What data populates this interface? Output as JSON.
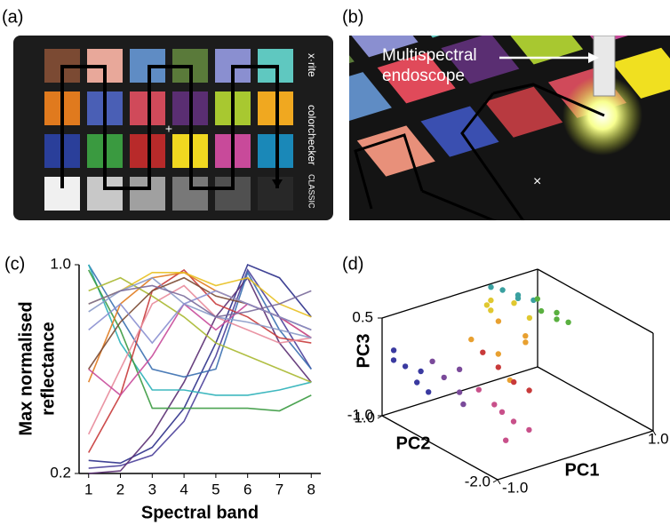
{
  "panel_labels": [
    "(a)",
    "(b)",
    "(c)",
    "(d)"
  ],
  "checker": {
    "brand": "x·rite",
    "product": "colorchecker",
    "edition": "CLASSIC"
  },
  "endoscope_annotation": [
    "Multispectral",
    "endoscope"
  ],
  "chart_data": [
    {
      "type": "line",
      "xlabel": "Spectral band",
      "ylabel": [
        "Max normalised",
        "reflectance"
      ],
      "x": [
        1,
        2,
        3,
        4,
        5,
        6,
        7,
        8
      ],
      "xlim": [
        0.7,
        8.3
      ],
      "xticks": [
        1,
        2,
        3,
        4,
        5,
        6,
        7,
        8
      ],
      "ylim": [
        0.2,
        1.0
      ],
      "yticks": [
        {
          "value": 1.0,
          "label": "1.0"
        },
        {
          "value": 0.2,
          "label": "0.2"
        }
      ],
      "series": [
        {
          "color": "#2b2f8a",
          "values": [
            0.25,
            0.24,
            0.3,
            0.45,
            0.7,
            1.0,
            0.95,
            0.8
          ]
        },
        {
          "color": "#4a3f9a",
          "values": [
            0.22,
            0.23,
            0.27,
            0.4,
            0.65,
            0.98,
            0.8,
            0.6
          ]
        },
        {
          "color": "#5a2e72",
          "values": [
            0.2,
            0.21,
            0.35,
            0.55,
            0.8,
            0.95,
            0.7,
            0.55
          ]
        },
        {
          "color": "#3a6fb0",
          "values": [
            1.0,
            0.8,
            0.6,
            0.57,
            0.6,
            0.97,
            0.75,
            0.6
          ]
        },
        {
          "color": "#2ab0b8",
          "values": [
            1.0,
            0.7,
            0.52,
            0.52,
            0.5,
            0.5,
            0.52,
            0.55
          ]
        },
        {
          "color": "#3a9a40",
          "values": [
            0.98,
            0.75,
            0.45,
            0.45,
            0.45,
            0.45,
            0.44,
            0.5
          ]
        },
        {
          "color": "#c83a3a",
          "values": [
            0.28,
            0.5,
            0.9,
            0.98,
            0.85,
            0.8,
            0.72,
            0.7
          ]
        },
        {
          "color": "#e07a1e",
          "values": [
            0.55,
            0.85,
            0.95,
            0.97,
            0.9,
            0.85,
            0.8,
            0.72
          ]
        },
        {
          "color": "#e8c020",
          "values": [
            0.85,
            0.9,
            0.97,
            0.97,
            0.92,
            0.95,
            0.85,
            0.8
          ]
        },
        {
          "color": "#e88a9a",
          "values": [
            0.35,
            0.6,
            0.85,
            0.92,
            0.8,
            0.75,
            0.7,
            0.72
          ]
        },
        {
          "color": "#c84a9a",
          "values": [
            0.6,
            0.5,
            0.65,
            0.85,
            0.75,
            0.85,
            0.8,
            0.72
          ]
        },
        {
          "color": "#a8b830",
          "values": [
            0.9,
            0.95,
            0.88,
            0.8,
            0.7,
            0.65,
            0.6,
            0.55
          ]
        },
        {
          "color": "#8a9ac8",
          "values": [
            0.82,
            0.9,
            0.95,
            0.85,
            0.8,
            0.78,
            0.75,
            0.72
          ]
        },
        {
          "color": "#7b4a33",
          "values": [
            0.6,
            0.78,
            0.9,
            0.95,
            0.88,
            0.85,
            0.8,
            0.75
          ]
        },
        {
          "color": "#8a8fd0",
          "values": [
            0.75,
            0.85,
            0.7,
            0.85,
            0.9,
            0.85,
            0.8,
            0.75
          ]
        },
        {
          "color": "#7a6a9a",
          "values": [
            0.85,
            0.9,
            0.92,
            0.88,
            0.8,
            0.82,
            0.85,
            0.9
          ]
        }
      ]
    },
    {
      "type": "scatter3d",
      "xlabel": "PC1",
      "ylabel": "PC2",
      "zlabel": "PC3",
      "xlim": [
        -1.0,
        1.0
      ],
      "xticks": [
        {
          "value": -1.0,
          "label": "-1.0"
        },
        {
          "value": 1.0,
          "label": "1.0"
        }
      ],
      "ylim": [
        -2.0,
        1.0
      ],
      "yticks": [
        {
          "value": 1.0,
          "label": "1.0"
        },
        {
          "value": -2.0,
          "label": "-2.0"
        }
      ],
      "zlim": [
        -1.0,
        0.5
      ],
      "zticks": [
        {
          "value": 0.5,
          "label": "0.5"
        },
        {
          "value": -1.0,
          "label": "-1.0"
        }
      ],
      "series": [
        {
          "color": "#3a3aa0",
          "x": [
            -0.9,
            -0.85,
            -0.8,
            -0.95,
            -0.75,
            -0.7
          ],
          "y": [
            0.9,
            0.7,
            0.5,
            0.8,
            0.3,
            0.6
          ],
          "z": [
            0.0,
            -0.2,
            -0.4,
            -0.1,
            -0.5,
            -0.3
          ]
        },
        {
          "color": "#7a4a9a",
          "x": [
            -0.6,
            -0.5,
            -0.65,
            -0.55,
            -0.45
          ],
          "y": [
            0.2,
            0.0,
            0.4,
            -0.2,
            0.1
          ],
          "z": [
            -0.3,
            -0.5,
            -0.1,
            -0.6,
            -0.2
          ]
        },
        {
          "color": "#c8508a",
          "x": [
            -0.3,
            -0.2,
            -0.4,
            -0.1,
            -0.25,
            -0.35
          ],
          "y": [
            -0.5,
            -0.8,
            -0.3,
            -1.0,
            -0.6,
            -0.9
          ],
          "z": [
            -0.6,
            -0.8,
            -0.4,
            -0.9,
            -0.7,
            -1.0
          ]
        },
        {
          "color": "#e8a030",
          "x": [
            -0.2,
            0.0,
            0.2,
            -0.1,
            0.1,
            0.3
          ],
          "y": [
            0.3,
            0.0,
            -0.3,
            -0.5,
            0.2,
            -0.1
          ],
          "z": [
            0.1,
            -0.1,
            0.2,
            -0.3,
            0.3,
            0.0
          ]
        },
        {
          "color": "#e0c830",
          "x": [
            0.2,
            0.4,
            0.3,
            0.5,
            0.1
          ],
          "y": [
            0.6,
            0.4,
            0.8,
            0.2,
            0.5
          ],
          "z": [
            0.3,
            0.4,
            0.35,
            0.2,
            0.45
          ]
        },
        {
          "color": "#3aa0a0",
          "x": [
            0.5,
            0.6,
            0.7,
            0.4,
            0.65
          ],
          "y": [
            0.9,
            0.7,
            0.5,
            1.0,
            0.8
          ],
          "z": [
            0.4,
            0.35,
            0.3,
            0.45,
            0.25
          ]
        },
        {
          "color": "#5ab040",
          "x": [
            0.7,
            0.8,
            0.9,
            0.75,
            0.85
          ],
          "y": [
            0.3,
            0.1,
            0.0,
            0.5,
            0.2
          ],
          "z": [
            0.2,
            0.1,
            0.05,
            0.3,
            0.15
          ]
        },
        {
          "color": "#c83a3a",
          "x": [
            -0.1,
            0.0,
            -0.2,
            0.1
          ],
          "y": [
            -0.2,
            -0.4,
            0.0,
            -0.6
          ],
          "z": [
            -0.2,
            -0.4,
            0.0,
            -0.5
          ]
        }
      ]
    }
  ]
}
